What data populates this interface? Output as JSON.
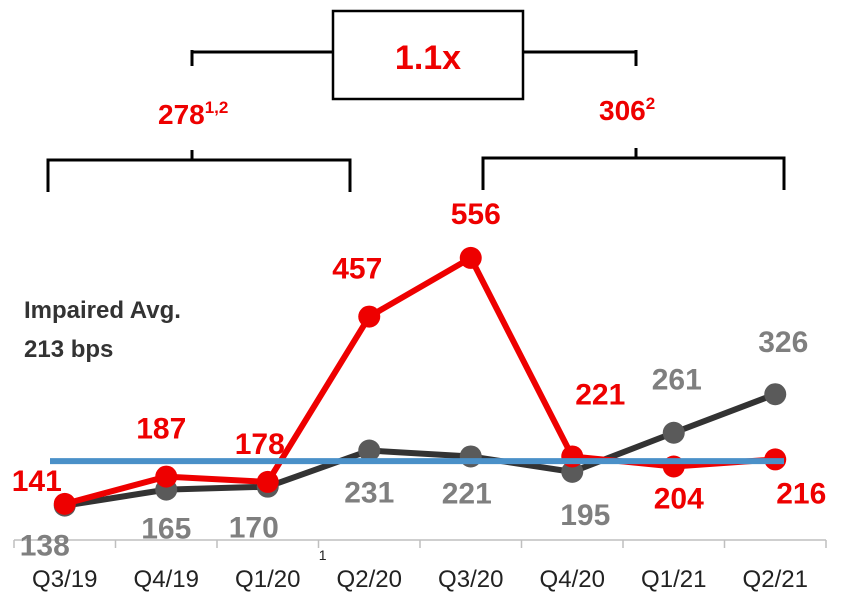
{
  "chart_data": {
    "type": "line",
    "categories": [
      "Q3/19",
      "Q4/19",
      "Q1/20",
      "Q2/20",
      "Q3/20",
      "Q4/20",
      "Q1/21",
      "Q2/21"
    ],
    "category_footnote": {
      "category_index": 2,
      "marker": "1"
    },
    "series": [
      {
        "values": [
          141,
          187,
          178,
          457,
          556,
          221,
          204,
          216
        ],
        "color": "#ee0000"
      },
      {
        "values": [
          138,
          165,
          170,
          231,
          221,
          195,
          261,
          326
        ],
        "color": "#333333",
        "label_color": "#7f7f7f"
      }
    ],
    "reference_line": {
      "value": 213,
      "color": "#4a90c8"
    },
    "annotation_label": {
      "line1": "Impaired Avg.",
      "line2": "213 bps"
    },
    "ylim": [
      80,
      620
    ],
    "grid": false,
    "brackets": {
      "left": {
        "value": "278",
        "superscript": "1,2",
        "from_index": 0,
        "to_index": 2
      },
      "right": {
        "value": "306",
        "superscript": "2",
        "from_index": 4,
        "to_index": 7
      }
    },
    "ratio_box": {
      "label": "1.1x"
    }
  }
}
